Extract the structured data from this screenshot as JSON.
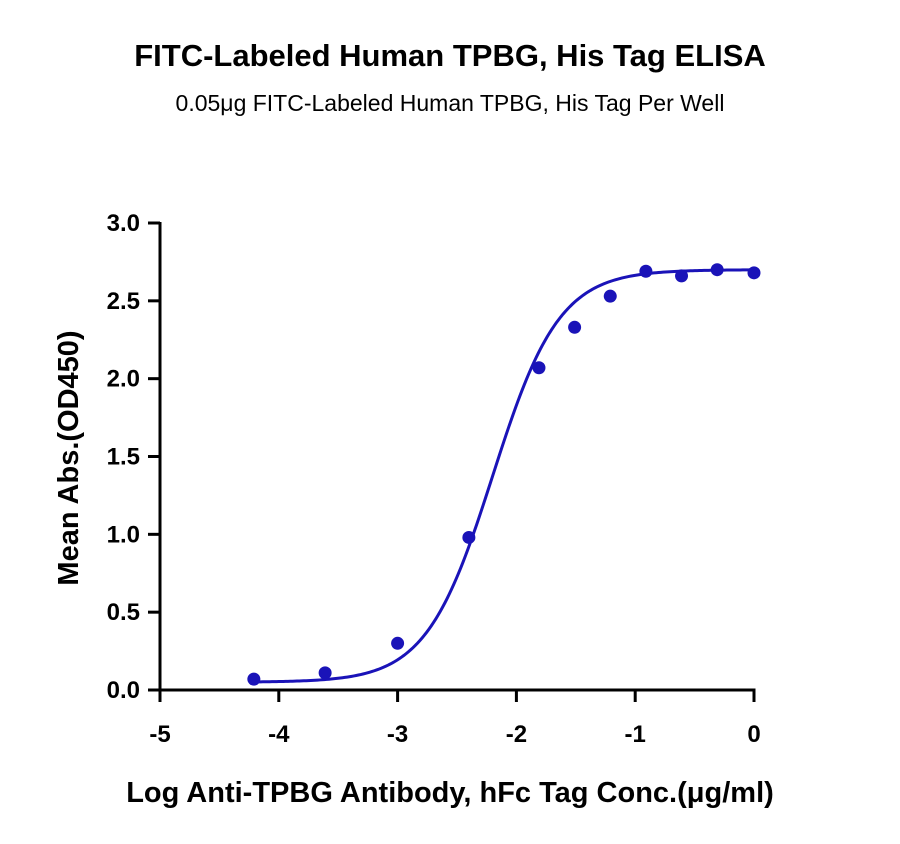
{
  "title": "FITC-Labeled Human TPBG, His Tag ELISA",
  "subtitle": "0.05μg FITC-Labeled Human TPBG, His Tag Per Well",
  "chart_data": {
    "type": "scatter",
    "title": "FITC-Labeled Human TPBG, His Tag ELISA",
    "subtitle": "0.05μg FITC-Labeled Human TPBG, His Tag Per Well",
    "xlabel": "Log Anti-TPBG Antibody, hFc Tag Conc.(μg/ml)",
    "ylabel": "Mean Abs.(OD450)",
    "xlim": [
      -5,
      0
    ],
    "ylim": [
      0,
      3.0
    ],
    "xticks": [
      "-5",
      "-4",
      "-3",
      "-2",
      "-1",
      "0"
    ],
    "yticks": [
      "0.0",
      "0.5",
      "1.0",
      "1.5",
      "2.0",
      "2.5",
      "3.0"
    ],
    "grid": false,
    "series": [
      {
        "color": "#1a13b8",
        "x": [
          -4.21,
          -3.61,
          -3.0,
          -2.4,
          -1.81,
          -1.51,
          -1.21,
          -0.91,
          -0.61,
          -0.31,
          0.0
        ],
        "y": [
          0.07,
          0.11,
          0.3,
          0.98,
          2.07,
          2.33,
          2.53,
          2.69,
          2.66,
          2.7,
          2.68
        ]
      }
    ],
    "fit_curve": {
      "type": "4PL",
      "bottom": 0.05,
      "top": 2.7,
      "logEC50": -2.2,
      "hill": 1.55
    }
  }
}
